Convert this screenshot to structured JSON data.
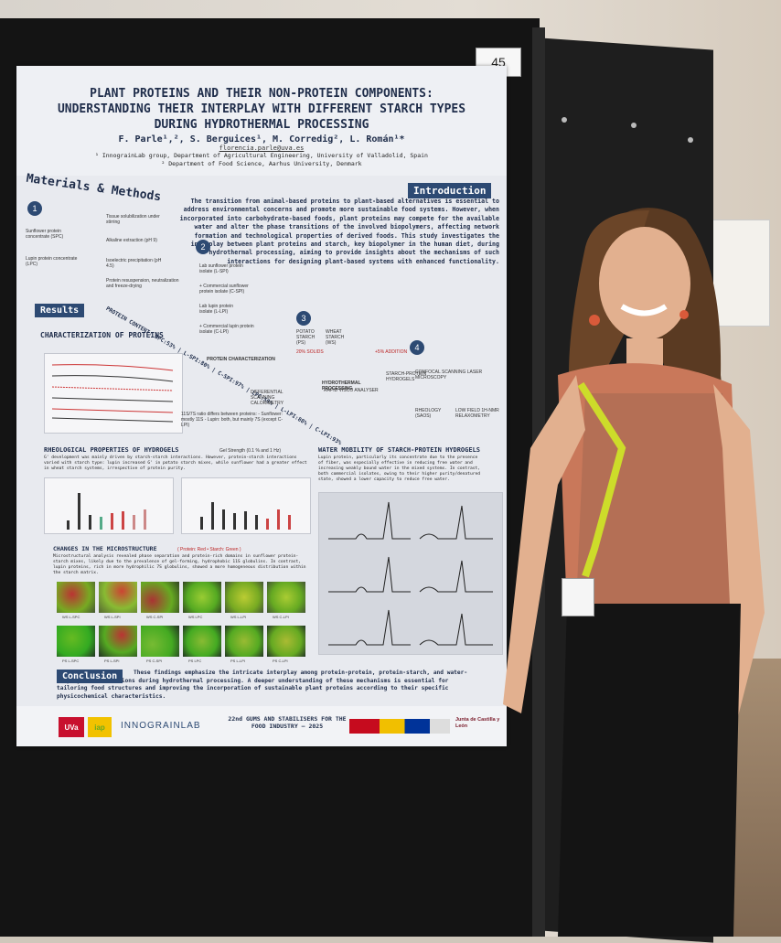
{
  "board_number": "45",
  "poster": {
    "title": "PLANT PROTEINS AND THEIR NON-PROTEIN COMPONENTS:\nUNDERSTANDING THEIR INTERPLAY WITH DIFFERENT STARCH TYPES\nDURING HYDROTHERMAL PROCESSING",
    "authors": "F. Parle¹,², S. Berguices¹, M. Corredig², L. Román¹*",
    "email": "florencia.parle@uva.es",
    "affiliation_1": "¹ InnograinLab group, Department of Agricultural Engineering, University of Valladolid, Spain",
    "affiliation_2": "² Department of Food Science, Aarhus University, Denmark",
    "materials_methods_heading": "Materials & Methods",
    "introduction_heading": "Introduction",
    "introduction_text": "The transition from animal-based proteins to plant-based alternatives is essential to address environmental concerns and promote more sustainable food systems. However, when incorporated into carbohydrate-based foods, plant proteins may compete for the available water and alter the phase transitions of the involved biopolymers, affecting network formation and technological properties of derived foods. This study investigates the interplay between plant proteins and starch, key biopolymer in the human diet, during hydrothermal processing, aiming to provide insights about the mechanisms of such interactions for designing plant-based systems with enhanced functionality.",
    "methods": {
      "sunflower": "Sunflower protein concentrate (SPC)",
      "lupin": "Lupin protein concentrate (LPC)",
      "tissue": "Tissue solubilization under stirring",
      "alkaline": "Alkaline extraction (pH 9)",
      "isoelectric": "Isoelectric precipitation (pH 4.5)",
      "resuspension": "Protein resuspension, neutralization and freeze-drying",
      "lab_sunflower": "Lab sunflower protein isolate (L-SPI)",
      "lab_lupin": "Lab lupin protein isolate (L-LPI)",
      "commercial_sunflower": "+ Commercial sunflower protein isolate (C-SPI)",
      "commercial_lupin": "+ Commercial lupin protein isolate (C-LPI)",
      "potato_starch": "POTATO STARCH (PS)",
      "wheat_starch": "WHEAT STARCH (WS)",
      "solids": "20% SOLIDS",
      "addition": "+5% ADDITION",
      "hydrothermal": "HYDROTHERMAL PROCESSING",
      "rva": "RAPID VISCO ANALYSER",
      "hydrogels": "STARCH-PROTEIN HYDROGELS",
      "clsm": "CONFOCAL SCANNING LASER MICROSCOPY",
      "rheology": "RHEOLOGY (SAOS)",
      "nmr": "LOW FIELD 1H-NMR RELAXOMETRY"
    },
    "results_heading": "Results",
    "protein_content": "PROTEIN CONTENT: SPC:53% | L-SPI:80% | C-SPI:97% | LPC:50% | L-LPI:88% | C-LPI:93%",
    "characterization_heading": "CHARACTERIZATION OF PROTEINS",
    "protein_characterization": "PROTEIN CHARACTERIZATION",
    "dsc": "DIFFERENTIAL SCANNING CALORIMETRY",
    "ratio_text": "11S/7S ratio differs between proteins: - Sunflower: mostly 11S - Lupin: both, but mainly 7S (except C-LPI)",
    "rheo_heading": "RHEOLOGICAL PROPERTIES OF HYDROGELS",
    "rheo_subheading": "Gel Strength (0.1 % and 1 Hz)",
    "rheo_text": "G' development was mainly driven by starch-starch interactions. However, protein-starch interactions varied with starch type: lupin increased G' in potato starch mixes, while sunflower had a greater effect in wheat starch systems, irrespective of protein purity.",
    "water_heading": "WATER MOBILITY OF STARCH-PROTEIN HYDROGELS",
    "water_text": "Lupin protein, particularly its concentrate due to the presence of fiber, was especially effective in reducing free water and increasing weakly bound water in the mixed systems. In contrast, both commercial isolates, owing to their higher purity/denatured state, showed a lower capacity to reduce free water.",
    "micro_heading": "CHANGES IN THE MICROSTRUCTURE",
    "micro_legend": "( Protein: Red • Starch: Green )",
    "micro_text": "Microstructural analysis revealed phase separation and protein-rich domains in sunflower protein-starch mixes, likely due to the prevalence of gel-forming, hydrophobic 11S globulins. In contrast, lupin proteins, rich in more hydrophilic 7S globulins, showed a more homogeneous distribution within the starch matrix.",
    "micro_labels": [
      "WS L-SPC",
      "WS L-SPI",
      "WS C-SPI",
      "WS LPC",
      "WS L-LPI",
      "WS C-LPI",
      "PS L-SPC",
      "PS L-SPI",
      "PS C-SPI",
      "PS LPC",
      "PS L-LPI",
      "PS C-LPI"
    ],
    "conclusion_heading": "Conclusion",
    "conclusion_text": "These findings emphasize the intricate interplay among protein-protein, protein-starch, and water-biopolymer interactions during hydrothermal processing. A deeper understanding of these mechanisms is essential for tailoring food structures and improving the incorporation of sustainable plant proteins according to their specific physicochemical characteristics.",
    "footer_uva": "UVa",
    "footer_iap": "iap",
    "footer_lab": "INNOGRAINLAB",
    "footer_conference": "22nd GUMS AND STABILISERS FOR THE FOOD INDUSTRY – 2025",
    "footer_junta": "Junta de Castilla y León"
  },
  "colors": {
    "navy": "#2d4a73",
    "poster_bg": "#e8eaef",
    "board": "#141414"
  }
}
